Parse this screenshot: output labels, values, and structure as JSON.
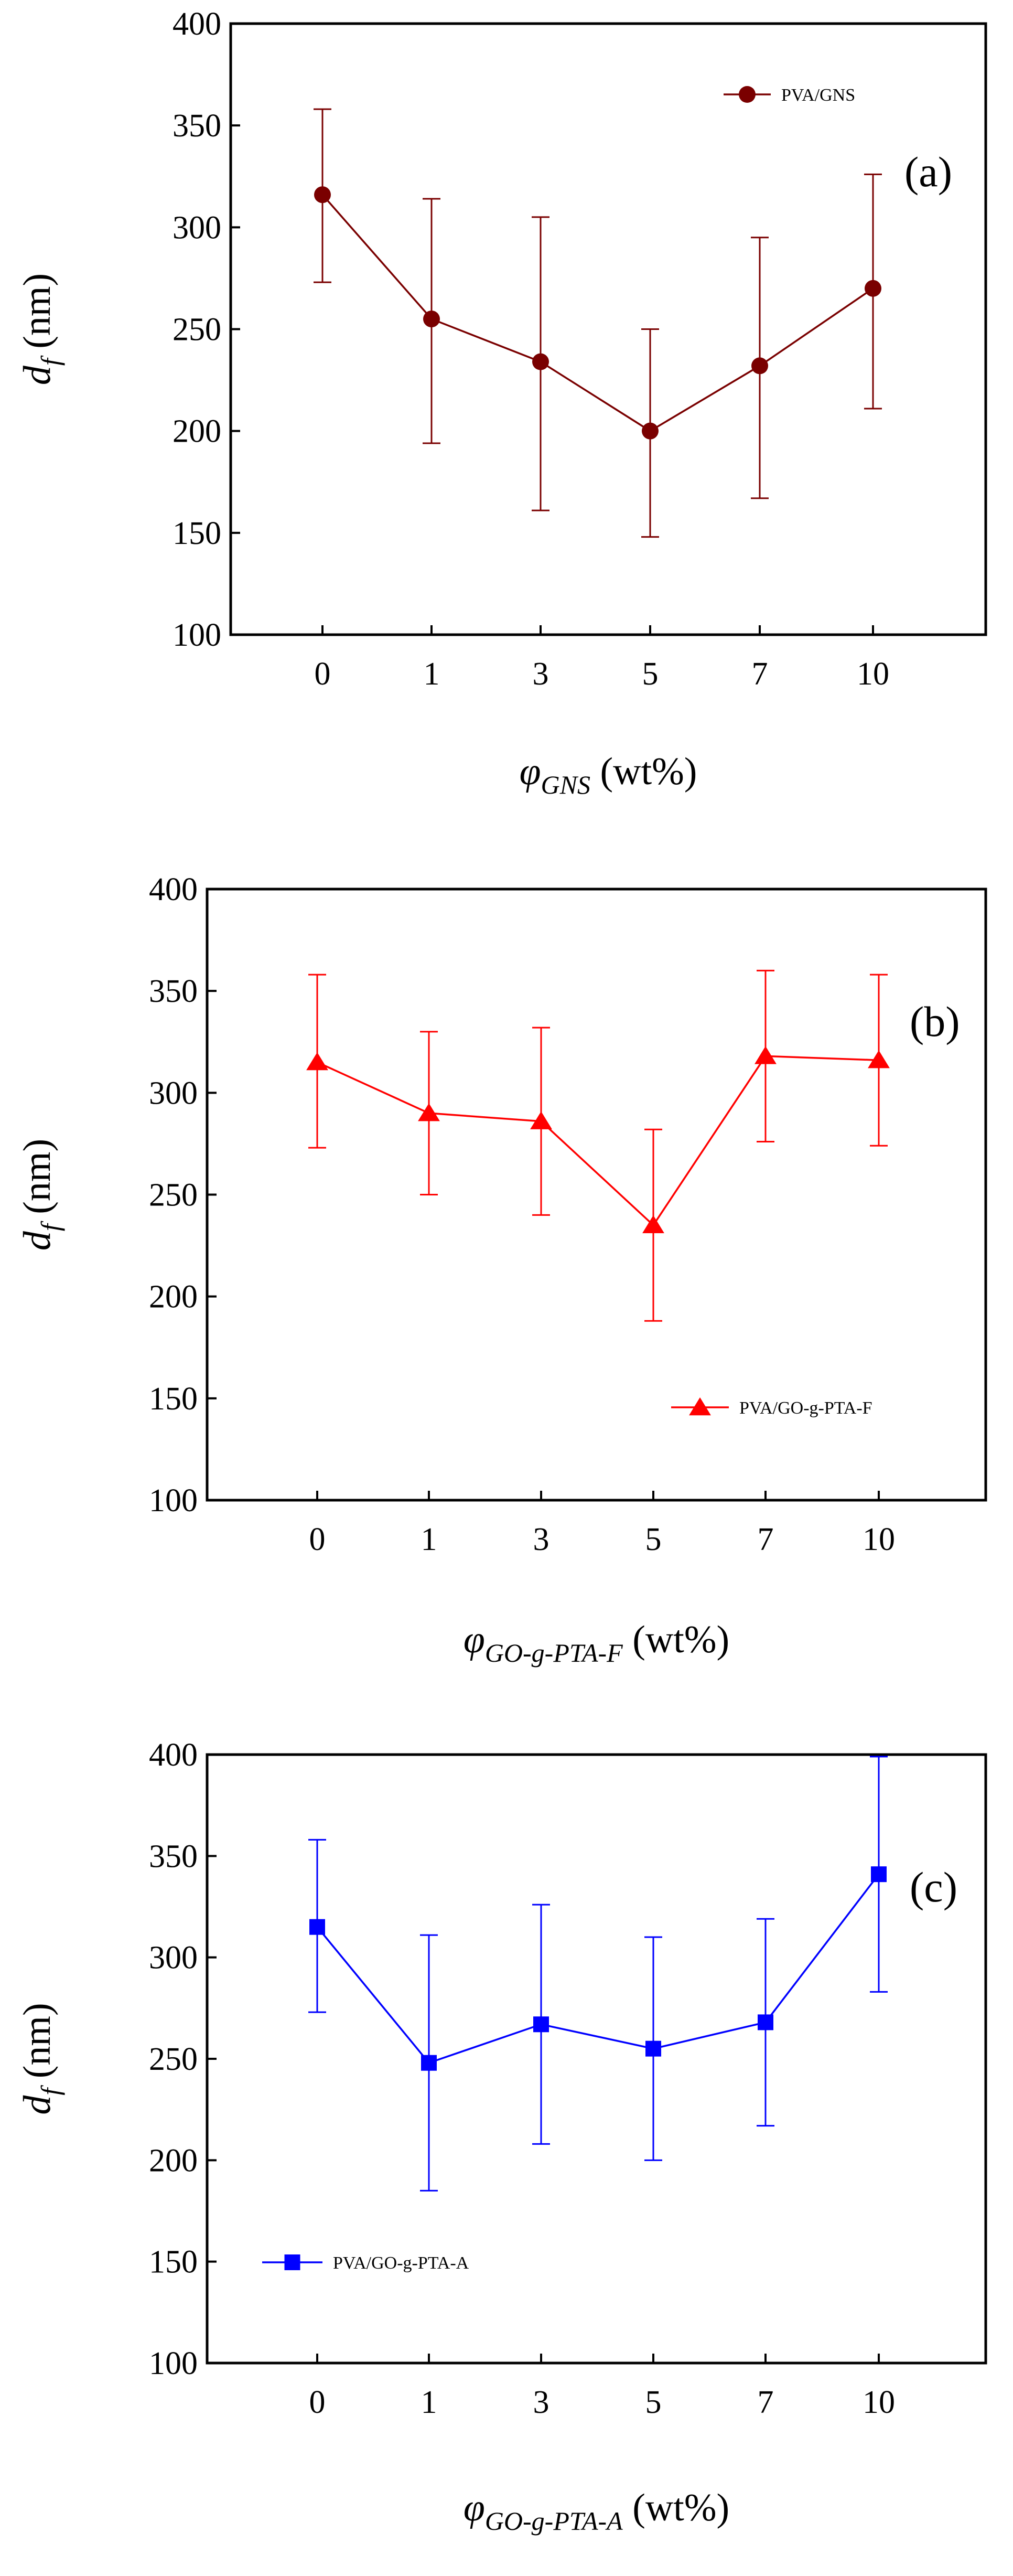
{
  "chart_data": [
    {
      "type": "line",
      "panel_label": "(a)",
      "categories": [
        "0",
        "1",
        "3",
        "5",
        "7",
        "10"
      ],
      "series": [
        {
          "name": "PVA/GNS",
          "values": [
            316,
            255,
            234,
            200,
            232,
            270
          ],
          "error_upper": [
            358,
            314,
            305,
            250,
            295,
            326
          ],
          "error_lower": [
            273,
            194,
            161,
            148,
            167,
            211
          ],
          "marker": "circle",
          "color": "#7a0000"
        }
      ],
      "ylim": [
        100,
        400
      ],
      "yticks": [
        "100",
        "150",
        "200",
        "250",
        "300",
        "350",
        "400"
      ],
      "ylabel": {
        "main": "d",
        "sub": "f",
        "unit": " (nm)"
      },
      "xlabel": {
        "main": "φ",
        "sub": "GNS",
        "unit": " (wt%)"
      },
      "legend_position": "top-right"
    },
    {
      "type": "line",
      "panel_label": "(b)",
      "categories": [
        "0",
        "1",
        "3",
        "5",
        "7",
        "10"
      ],
      "series": [
        {
          "name": "PVA/GO-g-PTA-F",
          "values": [
            315,
            290,
            286,
            235,
            318,
            316
          ],
          "error_upper": [
            358,
            330,
            332,
            282,
            360,
            358
          ],
          "error_lower": [
            273,
            250,
            240,
            188,
            276,
            274
          ],
          "marker": "triangle",
          "color": "#ff0000"
        }
      ],
      "ylim": [
        100,
        400
      ],
      "yticks": [
        "100",
        "150",
        "200",
        "250",
        "300",
        "350",
        "400"
      ],
      "ylabel": {
        "main": "d",
        "sub": "f",
        "unit": " (nm)"
      },
      "xlabel": {
        "main": "φ",
        "sub": "GO-g-PTA-F",
        "unit": " (wt%)"
      },
      "legend_position": "bottom-right"
    },
    {
      "type": "line",
      "panel_label": "(c)",
      "categories": [
        "0",
        "1",
        "3",
        "5",
        "7",
        "10"
      ],
      "series": [
        {
          "name": "PVA/GO-g-PTA-A",
          "values": [
            315,
            248,
            267,
            255,
            268,
            341
          ],
          "error_upper": [
            358,
            311,
            326,
            310,
            319,
            399
          ],
          "error_lower": [
            273,
            185,
            208,
            200,
            217,
            283
          ],
          "marker": "square",
          "color": "#0000ff"
        }
      ],
      "ylim": [
        100,
        400
      ],
      "yticks": [
        "100",
        "150",
        "200",
        "250",
        "300",
        "350",
        "400"
      ],
      "ylabel": {
        "main": "d",
        "sub": "f",
        "unit": " (nm)"
      },
      "xlabel": {
        "main": "φ",
        "sub": "GO-g-PTA-A",
        "unit": " (wt%)"
      },
      "legend_position": "bottom-left"
    }
  ]
}
